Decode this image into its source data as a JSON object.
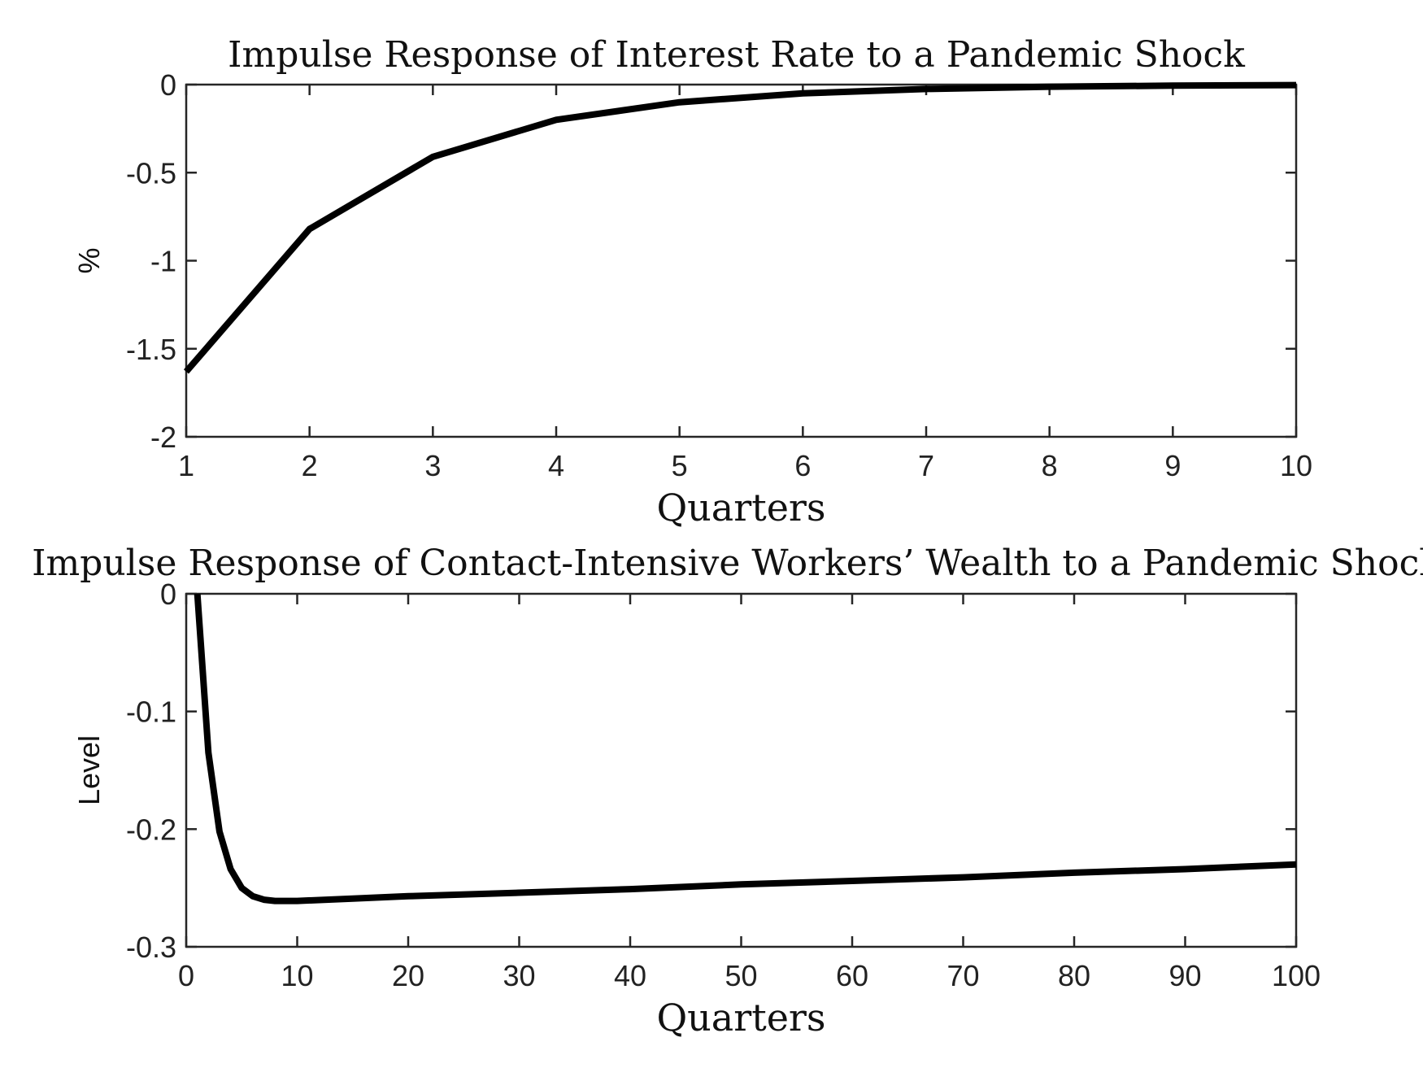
{
  "chart_data": [
    {
      "type": "line",
      "title": "Impulse Response of Interest Rate to a Pandemic Shock",
      "xlabel": "Quarters",
      "ylabel": "%",
      "xlim": [
        1,
        10
      ],
      "ylim": [
        -2,
        0
      ],
      "xticks": [
        1,
        2,
        3,
        4,
        5,
        6,
        7,
        8,
        9,
        10
      ],
      "xtick_labels": [
        "1",
        "2",
        "3",
        "4",
        "5",
        "6",
        "7",
        "8",
        "9",
        "10"
      ],
      "yticks": [
        -2,
        -1.5,
        -1,
        -0.5,
        0
      ],
      "ytick_labels": [
        "-2",
        "-1.5",
        "-1",
        "-0.5",
        "0"
      ],
      "grid": false,
      "series": [
        {
          "color": "#000000",
          "x": [
            1,
            2,
            3,
            4,
            5,
            6,
            7,
            8,
            9,
            10
          ],
          "y": [
            -1.63,
            -0.82,
            -0.41,
            -0.2,
            -0.1,
            -0.05,
            -0.025,
            -0.012,
            -0.006,
            -0.003
          ]
        }
      ]
    },
    {
      "type": "line",
      "title": "Impulse Response of Contact-Intensive Workers’ Wealth to a Pandemic Shock",
      "xlabel": "Quarters",
      "ylabel": "Level",
      "xlim": [
        0,
        100
      ],
      "ylim": [
        -0.3,
        0
      ],
      "xticks": [
        0,
        10,
        20,
        30,
        40,
        50,
        60,
        70,
        80,
        90,
        100
      ],
      "xtick_labels": [
        "0",
        "10",
        "20",
        "30",
        "40",
        "50",
        "60",
        "70",
        "80",
        "90",
        "100"
      ],
      "yticks": [
        -0.3,
        -0.2,
        -0.1,
        0
      ],
      "ytick_labels": [
        "-0.3",
        "-0.2",
        "-0.1",
        "0"
      ],
      "grid": false,
      "series": [
        {
          "color": "#000000",
          "x": [
            1,
            2,
            3,
            4,
            5,
            6,
            7,
            8,
            9,
            10,
            15,
            20,
            30,
            40,
            50,
            60,
            70,
            80,
            90,
            100
          ],
          "y": [
            0,
            -0.135,
            -0.202,
            -0.234,
            -0.25,
            -0.257,
            -0.26,
            -0.261,
            -0.261,
            -0.261,
            -0.259,
            -0.257,
            -0.254,
            -0.251,
            -0.247,
            -0.244,
            -0.241,
            -0.237,
            -0.234,
            -0.23
          ]
        }
      ]
    }
  ]
}
